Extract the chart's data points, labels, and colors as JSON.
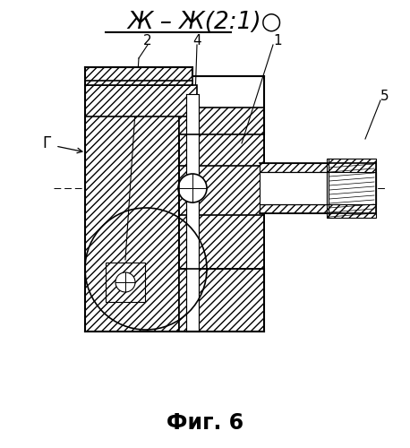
{
  "bg_color": "#ffffff",
  "line_color": "#000000",
  "title": "Ж – Ж(2:1)○",
  "caption": "Фиг. 6",
  "labels": {
    "G": "Г",
    "1": "1",
    "2": "2",
    "4": "4",
    "5": "5"
  }
}
